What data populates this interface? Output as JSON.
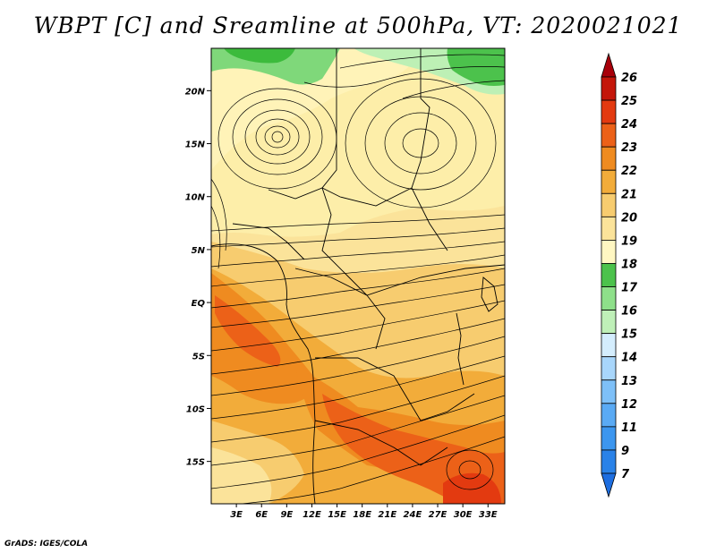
{
  "title": "WBPT [C] and Sreamline at 500hPa, VT: 2020021021",
  "credit": "GrADS: IGES/COLA",
  "map": {
    "lon_range": [
      0,
      35
    ],
    "lat_range": [
      -19,
      24
    ],
    "x_ticks": [
      "3E",
      "6E",
      "9E",
      "12E",
      "15E",
      "18E",
      "21E",
      "24E",
      "27E",
      "30E",
      "33E"
    ],
    "y_ticks": [
      "20N",
      "15N",
      "10N",
      "5N",
      "EQ",
      "5S",
      "10S",
      "15S"
    ],
    "x_tick_values": [
      3,
      6,
      9,
      12,
      15,
      18,
      21,
      24,
      27,
      30,
      33
    ],
    "y_tick_values": [
      20,
      15,
      10,
      5,
      0,
      -5,
      -10,
      -15
    ]
  },
  "colorbar": {
    "labels": [
      "7",
      "9",
      "11",
      "12",
      "13",
      "14",
      "15",
      "16",
      "17",
      "18",
      "19",
      "20",
      "21",
      "22",
      "23",
      "24",
      "25",
      "26"
    ],
    "colors": [
      "#1e6ee0",
      "#2a82e8",
      "#3c96ef",
      "#5aaaf4",
      "#7ec0f8",
      "#a8d6fb",
      "#d4edfd",
      "#bff0b8",
      "#8ee08a",
      "#4cc24c",
      "#fff7c2",
      "#fbe39a",
      "#f7cc6f",
      "#f2ac3a",
      "#ef8b20",
      "#ec6118",
      "#e33a10",
      "#c4160a",
      "#a8000a"
    ]
  }
}
